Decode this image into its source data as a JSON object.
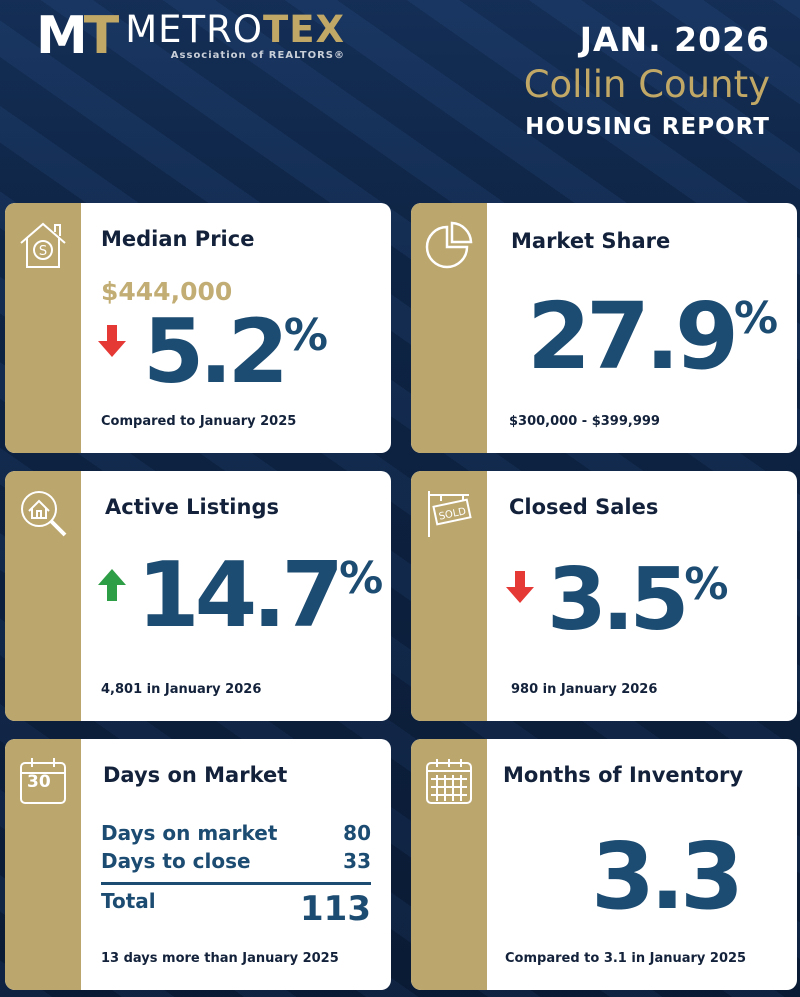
{
  "brand": {
    "mark_left": "M",
    "mark_right": "T",
    "name_a": "METRO",
    "name_b": "TEX",
    "subtitle": "Association of REALTORS®"
  },
  "header": {
    "date": "JAN. 2026",
    "county": "Collin County",
    "report": "HOUSING REPORT"
  },
  "colors": {
    "navy": "#0c1f3b",
    "gold": "#bba66e",
    "value": "#1d4c72",
    "down": "#e53935",
    "up": "#2e9e46"
  },
  "median_price": {
    "title": "Median Price",
    "price": "$444,000",
    "change": "5.2",
    "pct": "%",
    "direction": "down",
    "footer": "Compared to January 2025",
    "icon": "house-dollar-icon"
  },
  "market_share": {
    "title": "Market Share",
    "value": "27.9",
    "pct": "%",
    "footer": "$300,000 - $399,999",
    "icon": "pie-chart-icon"
  },
  "active_listings": {
    "title": "Active Listings",
    "change": "14.7",
    "pct": "%",
    "direction": "up",
    "footer": "4,801 in January 2026",
    "icon": "house-search-icon"
  },
  "closed_sales": {
    "title": "Closed Sales",
    "change": "3.5",
    "pct": "%",
    "direction": "down",
    "footer": "980 in January 2026",
    "icon": "sold-sign-icon"
  },
  "days_on_market": {
    "title": "Days on Market",
    "icon_text": "30",
    "rows": [
      {
        "label": "Days on market",
        "value": "80"
      },
      {
        "label": "Days to close",
        "value": "33"
      }
    ],
    "total_label": "Total",
    "total_value": "113",
    "footer": "13 days more than January 2025"
  },
  "months_inventory": {
    "title": "Months of Inventory",
    "value": "3.3",
    "footer": "Compared to 3.1 in January 2025",
    "icon": "calendar-icon"
  }
}
